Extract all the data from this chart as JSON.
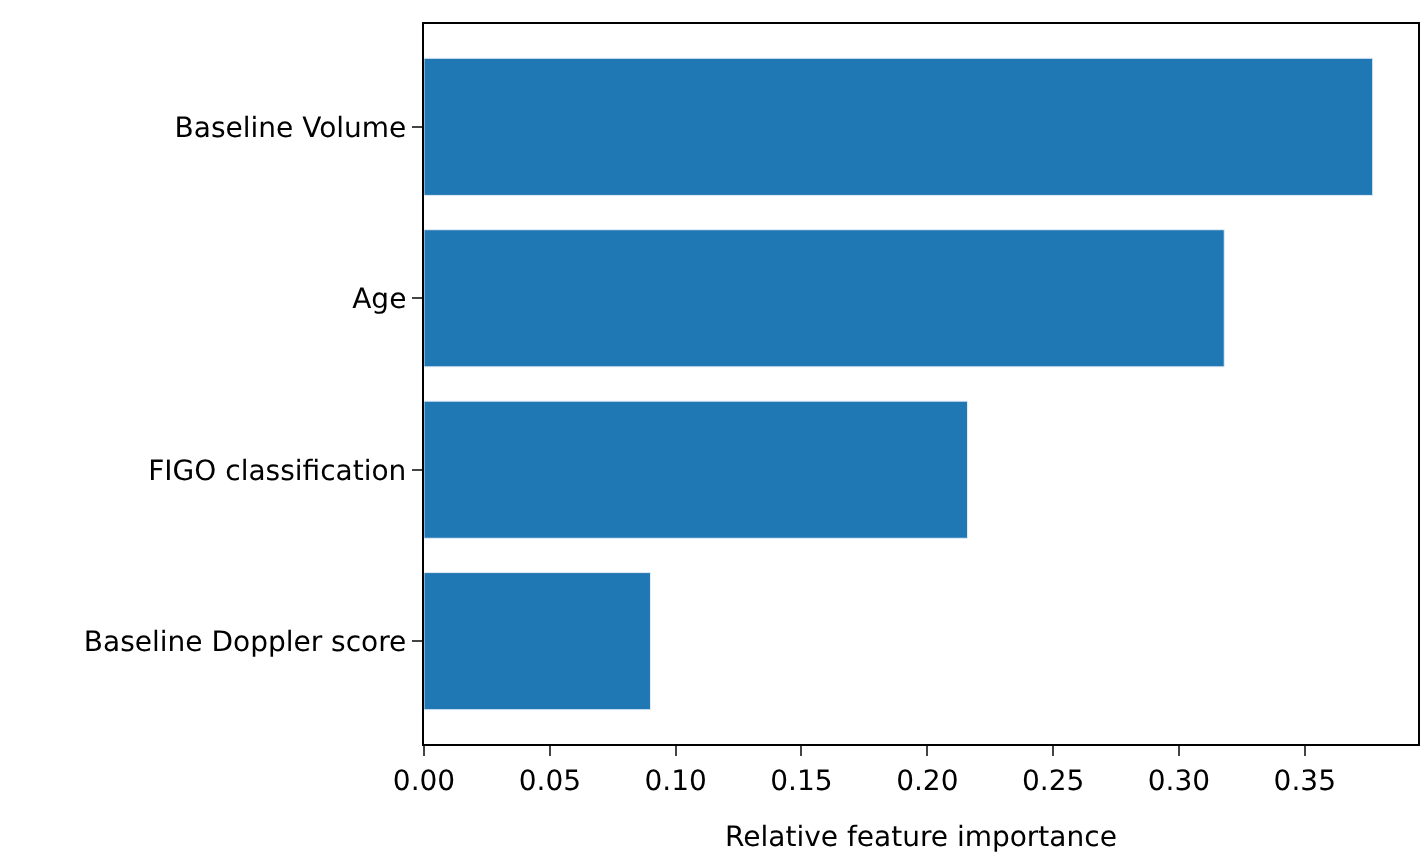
{
  "chart_data": {
    "type": "bar",
    "orientation": "horizontal",
    "xlabel": "Relative feature importance",
    "categories": [
      "Baseline Volume",
      "Age",
      "FIGO classification",
      "Baseline Doppler score"
    ],
    "values": [
      0.377,
      0.318,
      0.216,
      0.09
    ],
    "color": "#1f77b4",
    "xlim": [
      0,
      0.395
    ],
    "xticks": [
      {
        "value": 0,
        "label": "0.00"
      },
      {
        "value": 0.05,
        "label": "0.05"
      },
      {
        "value": 0.1,
        "label": "0.10"
      },
      {
        "value": 0.15,
        "label": "0.15"
      },
      {
        "value": 0.2,
        "label": "0.20"
      },
      {
        "value": 0.25,
        "label": "0.25"
      },
      {
        "value": 0.3,
        "label": "0.30"
      },
      {
        "value": 0.35,
        "label": "0.35"
      }
    ]
  }
}
